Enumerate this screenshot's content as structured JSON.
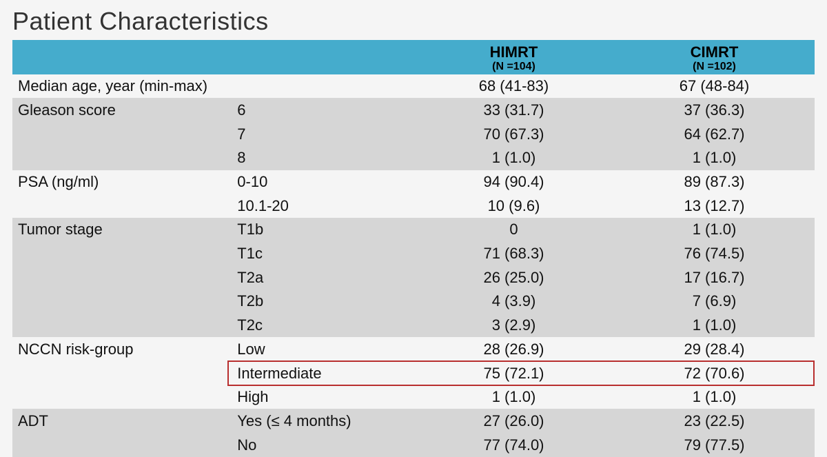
{
  "title": "Patient Characteristics",
  "colors": {
    "header_bg": "#45accc",
    "shade_bg": "#d6d6d6",
    "noshade_bg": "#f5f5f5",
    "highlight_border": "#b82e2e",
    "text": "#111111",
    "title_text": "#333333"
  },
  "typography": {
    "title_fontsize": 36,
    "title_fontweight": 300,
    "header_fontsize": 22,
    "header_fontweight": 700,
    "header_sub_fontsize": 16,
    "body_fontsize": 22
  },
  "layout": {
    "col_widths_pct": [
      27,
      23,
      25,
      25
    ],
    "highlight_row_index": 12
  },
  "table": {
    "type": "table",
    "columns": [
      {
        "label": "",
        "sub": ""
      },
      {
        "label": "",
        "sub": ""
      },
      {
        "label": "HIMRT",
        "sub": "(N =104)"
      },
      {
        "label": "CIMRT",
        "sub": "(N =102)"
      }
    ],
    "rows": [
      {
        "shade": false,
        "c1": "Median age, year (min-max)",
        "c2": "",
        "c3": "68 (41-83)",
        "c4": "67 (48-84)"
      },
      {
        "shade": true,
        "c1": "Gleason score",
        "c2": "6",
        "c3": "33 (31.7)",
        "c4": "37 (36.3)"
      },
      {
        "shade": true,
        "c1": "",
        "c2": "7",
        "c3": "70 (67.3)",
        "c4": "64 (62.7)"
      },
      {
        "shade": true,
        "c1": "",
        "c2": "8",
        "c3": "1 (1.0)",
        "c4": "1 (1.0)"
      },
      {
        "shade": false,
        "c1": "PSA (ng/ml)",
        "c2": "0-10",
        "c3": "94 (90.4)",
        "c4": "89 (87.3)"
      },
      {
        "shade": false,
        "c1": "",
        "c2": "10.1-20",
        "c3": "10 (9.6)",
        "c4": "13 (12.7)"
      },
      {
        "shade": true,
        "c1": "Tumor stage",
        "c2": "T1b",
        "c3": "0",
        "c4": "1 (1.0)"
      },
      {
        "shade": true,
        "c1": "",
        "c2": "T1c",
        "c3": "71 (68.3)",
        "c4": "76 (74.5)"
      },
      {
        "shade": true,
        "c1": "",
        "c2": "T2a",
        "c3": "26 (25.0)",
        "c4": "17 (16.7)"
      },
      {
        "shade": true,
        "c1": "",
        "c2": "T2b",
        "c3": "4 (3.9)",
        "c4": "7 (6.9)"
      },
      {
        "shade": true,
        "c1": "",
        "c2": "T2c",
        "c3": "3 (2.9)",
        "c4": "1 (1.0)"
      },
      {
        "shade": false,
        "c1": "NCCN risk-group",
        "c2": "Low",
        "c3": "28 (26.9)",
        "c4": "29 (28.4)"
      },
      {
        "shade": false,
        "c1": "",
        "c2": "Intermediate",
        "c3": "75 (72.1)",
        "c4": "72 (70.6)"
      },
      {
        "shade": false,
        "c1": "",
        "c2": "High",
        "c3": "1 (1.0)",
        "c4": "1 (1.0)"
      },
      {
        "shade": true,
        "c1": "ADT",
        "c2": "Yes (≤ 4 months)",
        "c3": "27 (26.0)",
        "c4": "23 (22.5)"
      },
      {
        "shade": true,
        "c1": "",
        "c2": "No",
        "c3": "77 (74.0)",
        "c4": "79 (77.5)"
      }
    ]
  }
}
